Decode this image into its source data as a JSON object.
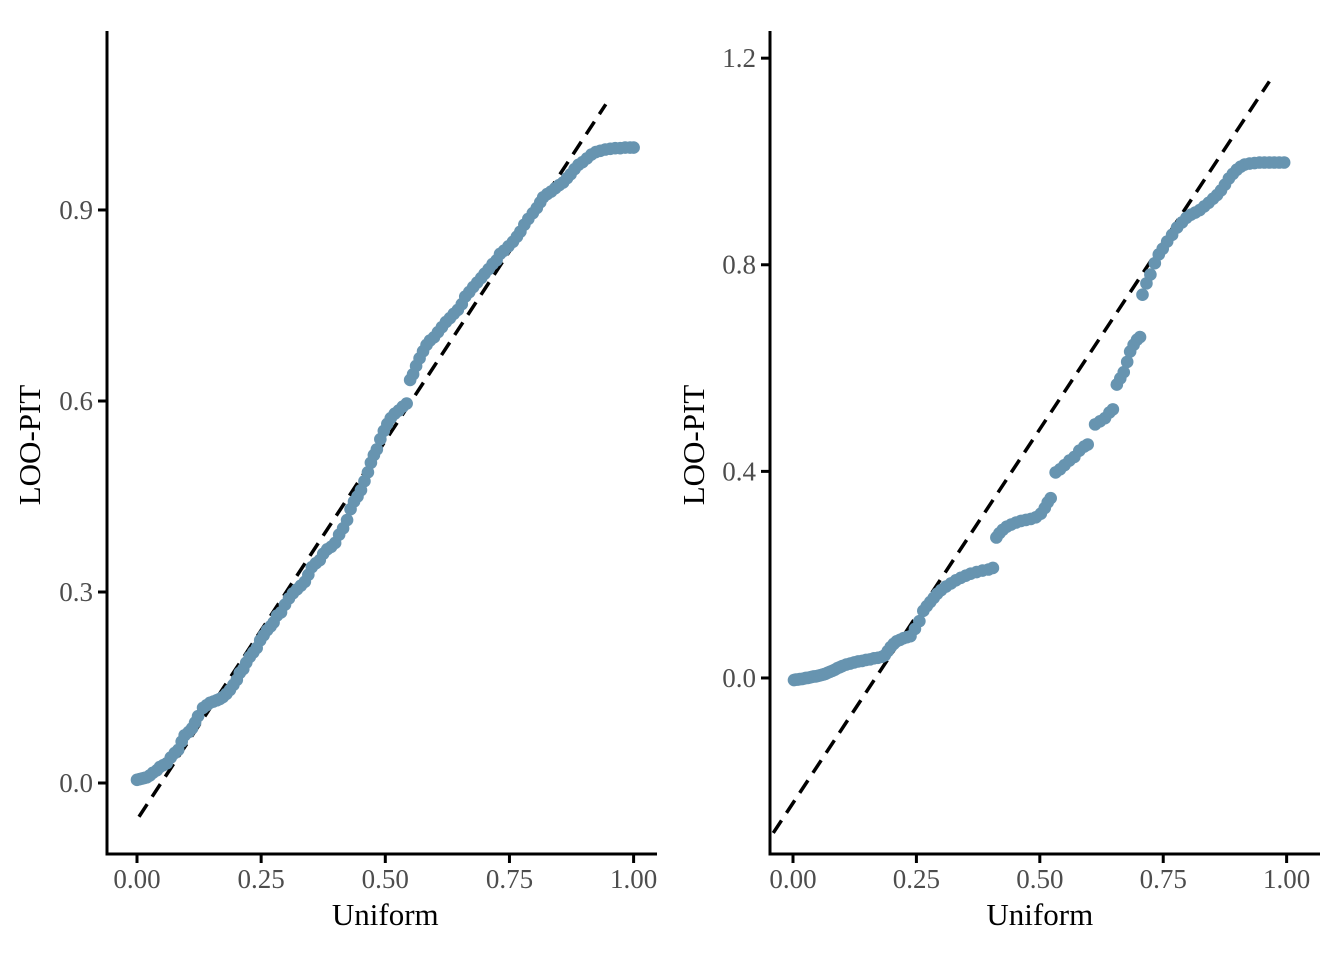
{
  "figure": {
    "background": "#ffffff",
    "point_color": "#6794b0",
    "reference_line_color": "#000000",
    "axis_color": "#000000",
    "tick_label_color": "#4d4d4d",
    "axis_title_color": "#000000"
  },
  "chart_data": [
    {
      "type": "scatter",
      "panel": "left",
      "title": "",
      "xlabel": "Uniform",
      "ylabel": "LOO-PIT",
      "grid": false,
      "legend": false,
      "x_tick_labels": [
        "0.00",
        "0.25",
        "0.50",
        "0.75",
        "1.00"
      ],
      "x_tick_values": [
        0,
        0.25,
        0.5,
        0.75,
        1
      ],
      "y_tick_labels": [
        "0.0",
        "0.3",
        "0.6",
        "0.9"
      ],
      "y_tick_values": [
        0,
        0.3,
        0.6,
        0.9
      ],
      "xlim": [
        -0.0604,
        1.0471
      ],
      "ylim": [
        -0.1115,
        1.1811
      ],
      "reference_line": {
        "style": "dashed",
        "x1": 0.004,
        "y1": -0.053,
        "x2": 0.944,
        "y2": 1.066
      },
      "points": [
        [
          0.0,
          0.005
        ],
        [
          0.005,
          0.006
        ],
        [
          0.01,
          0.007
        ],
        [
          0.015,
          0.008
        ],
        [
          0.02,
          0.009
        ],
        [
          0.026,
          0.012
        ],
        [
          0.032,
          0.016
        ],
        [
          0.04,
          0.02
        ],
        [
          0.046,
          0.025
        ],
        [
          0.053,
          0.028
        ],
        [
          0.06,
          0.031
        ],
        [
          0.068,
          0.04
        ],
        [
          0.076,
          0.047
        ],
        [
          0.083,
          0.052
        ],
        [
          0.09,
          0.065
        ],
        [
          0.096,
          0.075
        ],
        [
          0.104,
          0.08
        ],
        [
          0.111,
          0.086
        ],
        [
          0.117,
          0.095
        ],
        [
          0.123,
          0.105
        ],
        [
          0.133,
          0.118
        ],
        [
          0.14,
          0.122
        ],
        [
          0.147,
          0.126
        ],
        [
          0.154,
          0.128
        ],
        [
          0.161,
          0.13
        ],
        [
          0.167,
          0.132
        ],
        [
          0.173,
          0.135
        ],
        [
          0.18,
          0.14
        ],
        [
          0.187,
          0.146
        ],
        [
          0.194,
          0.154
        ],
        [
          0.201,
          0.162
        ],
        [
          0.207,
          0.173
        ],
        [
          0.214,
          0.179
        ],
        [
          0.22,
          0.189
        ],
        [
          0.227,
          0.198
        ],
        [
          0.234,
          0.205
        ],
        [
          0.241,
          0.212
        ],
        [
          0.248,
          0.224
        ],
        [
          0.255,
          0.232
        ],
        [
          0.262,
          0.24
        ],
        [
          0.269,
          0.246
        ],
        [
          0.275,
          0.252
        ],
        [
          0.282,
          0.263
        ],
        [
          0.29,
          0.268
        ],
        [
          0.298,
          0.28
        ],
        [
          0.306,
          0.29
        ],
        [
          0.314,
          0.298
        ],
        [
          0.322,
          0.304
        ],
        [
          0.33,
          0.31
        ],
        [
          0.338,
          0.316
        ],
        [
          0.345,
          0.327
        ],
        [
          0.352,
          0.339
        ],
        [
          0.36,
          0.345
        ],
        [
          0.368,
          0.35
        ],
        [
          0.375,
          0.36
        ],
        [
          0.383,
          0.367
        ],
        [
          0.391,
          0.371
        ],
        [
          0.399,
          0.377
        ],
        [
          0.407,
          0.39
        ],
        [
          0.415,
          0.4
        ],
        [
          0.423,
          0.413
        ],
        [
          0.43,
          0.43
        ],
        [
          0.437,
          0.442
        ],
        [
          0.444,
          0.45
        ],
        [
          0.451,
          0.46
        ],
        [
          0.458,
          0.474
        ],
        [
          0.465,
          0.488
        ],
        [
          0.471,
          0.503
        ],
        [
          0.477,
          0.515
        ],
        [
          0.483,
          0.524
        ],
        [
          0.49,
          0.54
        ],
        [
          0.497,
          0.553
        ],
        [
          0.504,
          0.564
        ],
        [
          0.511,
          0.573
        ],
        [
          0.519,
          0.58
        ],
        [
          0.527,
          0.585
        ],
        [
          0.535,
          0.591
        ],
        [
          0.543,
          0.596
        ],
        [
          0.55,
          0.633
        ],
        [
          0.556,
          0.642
        ],
        [
          0.562,
          0.655
        ],
        [
          0.569,
          0.667
        ],
        [
          0.576,
          0.678
        ],
        [
          0.583,
          0.688
        ],
        [
          0.59,
          0.695
        ],
        [
          0.598,
          0.7
        ],
        [
          0.606,
          0.708
        ],
        [
          0.614,
          0.716
        ],
        [
          0.622,
          0.724
        ],
        [
          0.63,
          0.73
        ],
        [
          0.638,
          0.737
        ],
        [
          0.646,
          0.743
        ],
        [
          0.654,
          0.752
        ],
        [
          0.661,
          0.764
        ],
        [
          0.669,
          0.771
        ],
        [
          0.677,
          0.779
        ],
        [
          0.685,
          0.786
        ],
        [
          0.693,
          0.793
        ],
        [
          0.7,
          0.8
        ],
        [
          0.708,
          0.807
        ],
        [
          0.716,
          0.815
        ],
        [
          0.724,
          0.821
        ],
        [
          0.731,
          0.831
        ],
        [
          0.739,
          0.836
        ],
        [
          0.748,
          0.843
        ],
        [
          0.757,
          0.85
        ],
        [
          0.765,
          0.858
        ],
        [
          0.772,
          0.866
        ],
        [
          0.78,
          0.877
        ],
        [
          0.788,
          0.886
        ],
        [
          0.797,
          0.895
        ],
        [
          0.805,
          0.903
        ],
        [
          0.812,
          0.912
        ],
        [
          0.818,
          0.92
        ],
        [
          0.826,
          0.925
        ],
        [
          0.834,
          0.929
        ],
        [
          0.842,
          0.934
        ],
        [
          0.85,
          0.939
        ],
        [
          0.858,
          0.943
        ],
        [
          0.866,
          0.95
        ],
        [
          0.873,
          0.956
        ],
        [
          0.881,
          0.964
        ],
        [
          0.889,
          0.971
        ],
        [
          0.897,
          0.975
        ],
        [
          0.906,
          0.981
        ],
        [
          0.915,
          0.987
        ],
        [
          0.924,
          0.991
        ],
        [
          0.933,
          0.993
        ],
        [
          0.943,
          0.995
        ],
        [
          0.953,
          0.996
        ],
        [
          0.963,
          0.997
        ],
        [
          0.973,
          0.997
        ],
        [
          0.983,
          0.998
        ],
        [
          0.993,
          0.998
        ],
        [
          1.0,
          0.998
        ]
      ]
    },
    {
      "type": "scatter",
      "panel": "right",
      "title": "",
      "xlabel": "Uniform",
      "ylabel": "LOO-PIT",
      "grid": false,
      "legend": false,
      "x_tick_labels": [
        "0.00",
        "0.25",
        "0.50",
        "0.75",
        "1.00"
      ],
      "x_tick_values": [
        0,
        0.25,
        0.5,
        0.75,
        1
      ],
      "y_tick_labels": [
        "0.0",
        "0.4",
        "0.8",
        "1.2"
      ],
      "y_tick_values": [
        0,
        0.4,
        0.8,
        1.2
      ],
      "xlim": [
        -0.0466,
        1.0676
      ],
      "ylim": [
        -0.3408,
        1.2526
      ],
      "reference_line": {
        "style": "dashed",
        "x1": -0.04,
        "y1": -0.3,
        "x2": 0.965,
        "y2": 1.155
      },
      "points": [
        [
          0.002,
          -0.004
        ],
        [
          0.006,
          -0.003
        ],
        [
          0.01,
          -0.003
        ],
        [
          0.014,
          -0.002
        ],
        [
          0.018,
          -0.002
        ],
        [
          0.022,
          -0.001
        ],
        [
          0.026,
          0.0
        ],
        [
          0.03,
          0.0
        ],
        [
          0.034,
          0.001
        ],
        [
          0.038,
          0.002
        ],
        [
          0.042,
          0.003
        ],
        [
          0.046,
          0.003
        ],
        [
          0.05,
          0.004
        ],
        [
          0.054,
          0.005
        ],
        [
          0.058,
          0.006
        ],
        [
          0.062,
          0.007
        ],
        [
          0.066,
          0.008
        ],
        [
          0.07,
          0.01
        ],
        [
          0.075,
          0.012
        ],
        [
          0.08,
          0.014
        ],
        [
          0.085,
          0.016
        ],
        [
          0.09,
          0.019
        ],
        [
          0.095,
          0.021
        ],
        [
          0.1,
          0.023
        ],
        [
          0.108,
          0.026
        ],
        [
          0.116,
          0.028
        ],
        [
          0.124,
          0.03
        ],
        [
          0.132,
          0.032
        ],
        [
          0.14,
          0.033
        ],
        [
          0.148,
          0.035
        ],
        [
          0.156,
          0.036
        ],
        [
          0.164,
          0.038
        ],
        [
          0.172,
          0.039
        ],
        [
          0.18,
          0.041
        ],
        [
          0.186,
          0.044
        ],
        [
          0.192,
          0.052
        ],
        [
          0.198,
          0.06
        ],
        [
          0.204,
          0.066
        ],
        [
          0.21,
          0.071
        ],
        [
          0.217,
          0.074
        ],
        [
          0.224,
          0.077
        ],
        [
          0.231,
          0.079
        ],
        [
          0.238,
          0.081
        ],
        [
          0.247,
          0.095
        ],
        [
          0.256,
          0.11
        ],
        [
          0.264,
          0.13
        ],
        [
          0.271,
          0.139
        ],
        [
          0.278,
          0.147
        ],
        [
          0.285,
          0.155
        ],
        [
          0.292,
          0.163
        ],
        [
          0.3,
          0.17
        ],
        [
          0.31,
          0.177
        ],
        [
          0.32,
          0.183
        ],
        [
          0.33,
          0.189
        ],
        [
          0.34,
          0.194
        ],
        [
          0.35,
          0.198
        ],
        [
          0.36,
          0.202
        ],
        [
          0.372,
          0.205
        ],
        [
          0.384,
          0.208
        ],
        [
          0.396,
          0.21
        ],
        [
          0.405,
          0.213
        ],
        [
          0.412,
          0.272
        ],
        [
          0.418,
          0.28
        ],
        [
          0.425,
          0.287
        ],
        [
          0.433,
          0.293
        ],
        [
          0.442,
          0.297
        ],
        [
          0.452,
          0.301
        ],
        [
          0.462,
          0.304
        ],
        [
          0.472,
          0.306
        ],
        [
          0.482,
          0.308
        ],
        [
          0.492,
          0.311
        ],
        [
          0.502,
          0.318
        ],
        [
          0.51,
          0.329
        ],
        [
          0.516,
          0.34
        ],
        [
          0.522,
          0.348
        ],
        [
          0.532,
          0.398
        ],
        [
          0.541,
          0.404
        ],
        [
          0.55,
          0.412
        ],
        [
          0.56,
          0.421
        ],
        [
          0.57,
          0.428
        ],
        [
          0.58,
          0.44
        ],
        [
          0.59,
          0.448
        ],
        [
          0.597,
          0.452
        ],
        [
          0.612,
          0.491
        ],
        [
          0.622,
          0.497
        ],
        [
          0.632,
          0.503
        ],
        [
          0.641,
          0.514
        ],
        [
          0.648,
          0.52
        ],
        [
          0.656,
          0.568
        ],
        [
          0.663,
          0.58
        ],
        [
          0.67,
          0.592
        ],
        [
          0.677,
          0.612
        ],
        [
          0.683,
          0.632
        ],
        [
          0.69,
          0.645
        ],
        [
          0.697,
          0.655
        ],
        [
          0.703,
          0.66
        ],
        [
          0.708,
          0.742
        ],
        [
          0.716,
          0.764
        ],
        [
          0.724,
          0.781
        ],
        [
          0.733,
          0.803
        ],
        [
          0.741,
          0.82
        ],
        [
          0.749,
          0.831
        ],
        [
          0.758,
          0.845
        ],
        [
          0.768,
          0.858
        ],
        [
          0.778,
          0.872
        ],
        [
          0.788,
          0.882
        ],
        [
          0.797,
          0.891
        ],
        [
          0.806,
          0.897
        ],
        [
          0.815,
          0.901
        ],
        [
          0.824,
          0.906
        ],
        [
          0.833,
          0.913
        ],
        [
          0.842,
          0.92
        ],
        [
          0.851,
          0.928
        ],
        [
          0.859,
          0.935
        ],
        [
          0.867,
          0.944
        ],
        [
          0.875,
          0.955
        ],
        [
          0.883,
          0.967
        ],
        [
          0.891,
          0.976
        ],
        [
          0.899,
          0.984
        ],
        [
          0.907,
          0.99
        ],
        [
          0.915,
          0.994
        ],
        [
          0.925,
          0.996
        ],
        [
          0.935,
          0.997
        ],
        [
          0.945,
          0.998
        ],
        [
          0.955,
          0.998
        ],
        [
          0.965,
          0.998
        ],
        [
          0.975,
          0.998
        ],
        [
          0.985,
          0.998
        ],
        [
          0.995,
          0.998
        ]
      ]
    }
  ]
}
